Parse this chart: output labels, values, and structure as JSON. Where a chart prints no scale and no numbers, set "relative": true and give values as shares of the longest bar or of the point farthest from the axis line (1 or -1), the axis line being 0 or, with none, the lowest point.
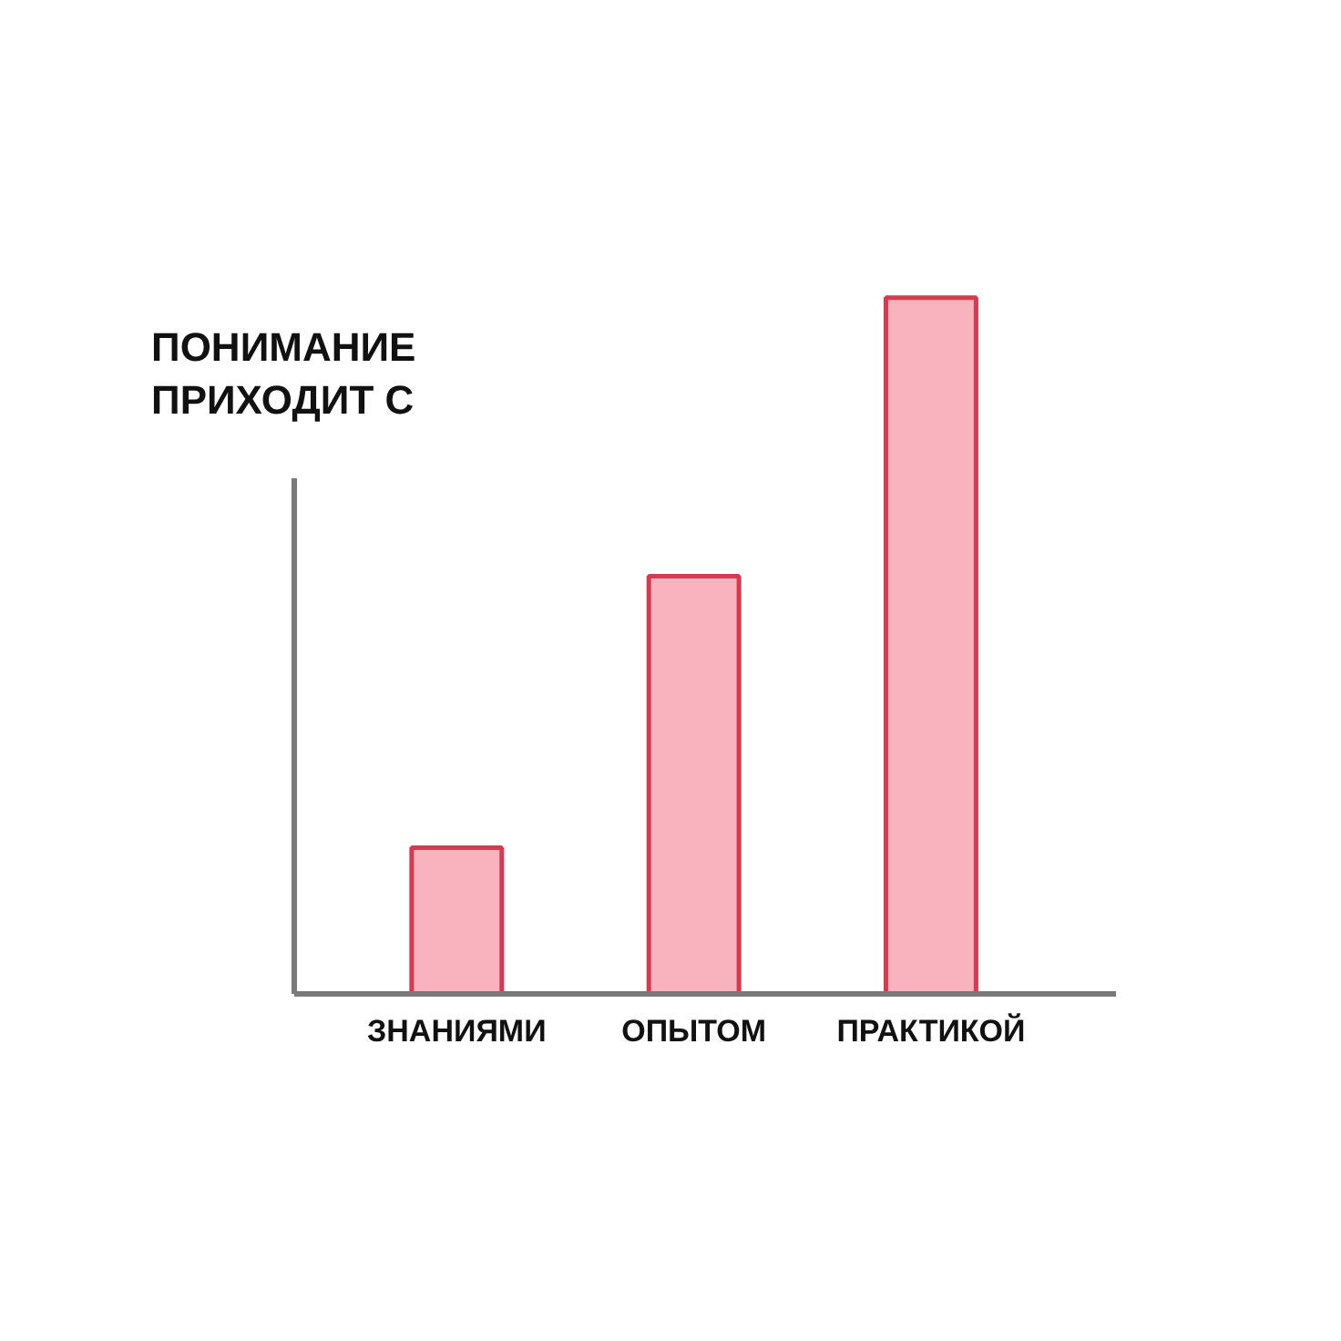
{
  "chart_data": {
    "type": "bar",
    "title": "ПОНИМАНИЕ\nПРИХОДИТ С",
    "categories": [
      "ЗНАНИЯМИ",
      "ОПЫТОМ",
      "ПРАКТИКОЙ"
    ],
    "values": [
      0.21,
      0.6,
      1
    ],
    "color": "#f9b3be",
    "relative": true,
    "grid": false,
    "tick_labels": "x"
  }
}
